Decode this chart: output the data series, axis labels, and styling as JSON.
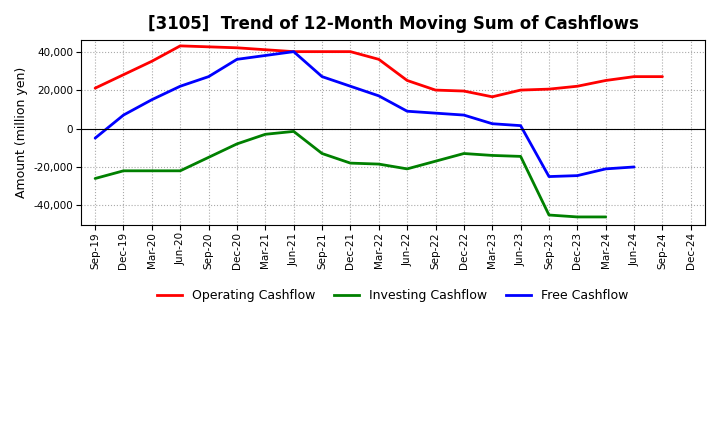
{
  "title": "[3105]  Trend of 12-Month Moving Sum of Cashflows",
  "ylabel": "Amount (million yen)",
  "x_labels": [
    "Sep-19",
    "Dec-19",
    "Mar-20",
    "Jun-20",
    "Sep-20",
    "Dec-20",
    "Mar-21",
    "Jun-21",
    "Sep-21",
    "Dec-21",
    "Mar-22",
    "Jun-22",
    "Sep-22",
    "Dec-22",
    "Mar-23",
    "Jun-23",
    "Sep-23",
    "Dec-23",
    "Mar-24",
    "Jun-24",
    "Sep-24",
    "Dec-24"
  ],
  "operating": [
    21000,
    28000,
    35000,
    43000,
    42500,
    42000,
    41000,
    40000,
    40000,
    40000,
    36000,
    25000,
    20000,
    19500,
    16500,
    20000,
    20500,
    22000,
    25000,
    27000,
    27000,
    null
  ],
  "investing": [
    -26000,
    -22000,
    -22000,
    -22000,
    -15000,
    -8000,
    -3000,
    -1500,
    -13000,
    -18000,
    -18500,
    -21000,
    -17000,
    -13000,
    -14000,
    -14500,
    -45000,
    -46000,
    -46000,
    null,
    null,
    null
  ],
  "free": [
    -5000,
    7000,
    15000,
    22000,
    27000,
    36000,
    38000,
    40000,
    27000,
    22000,
    17000,
    9000,
    8000,
    7000,
    2500,
    1500,
    -25000,
    -24500,
    -21000,
    -20000,
    null,
    null
  ],
  "ylim": [
    -50000,
    46000
  ],
  "yticks": [
    -40000,
    -20000,
    0,
    20000,
    40000
  ],
  "operating_color": "#ff0000",
  "investing_color": "#008000",
  "free_color": "#0000ff",
  "bg_color": "#ffffff",
  "plot_bg_color": "#ffffff",
  "grid_color": "#aaaaaa",
  "linewidth": 2.0,
  "title_fontsize": 12,
  "legend_labels": [
    "Operating Cashflow",
    "Investing Cashflow",
    "Free Cashflow"
  ]
}
